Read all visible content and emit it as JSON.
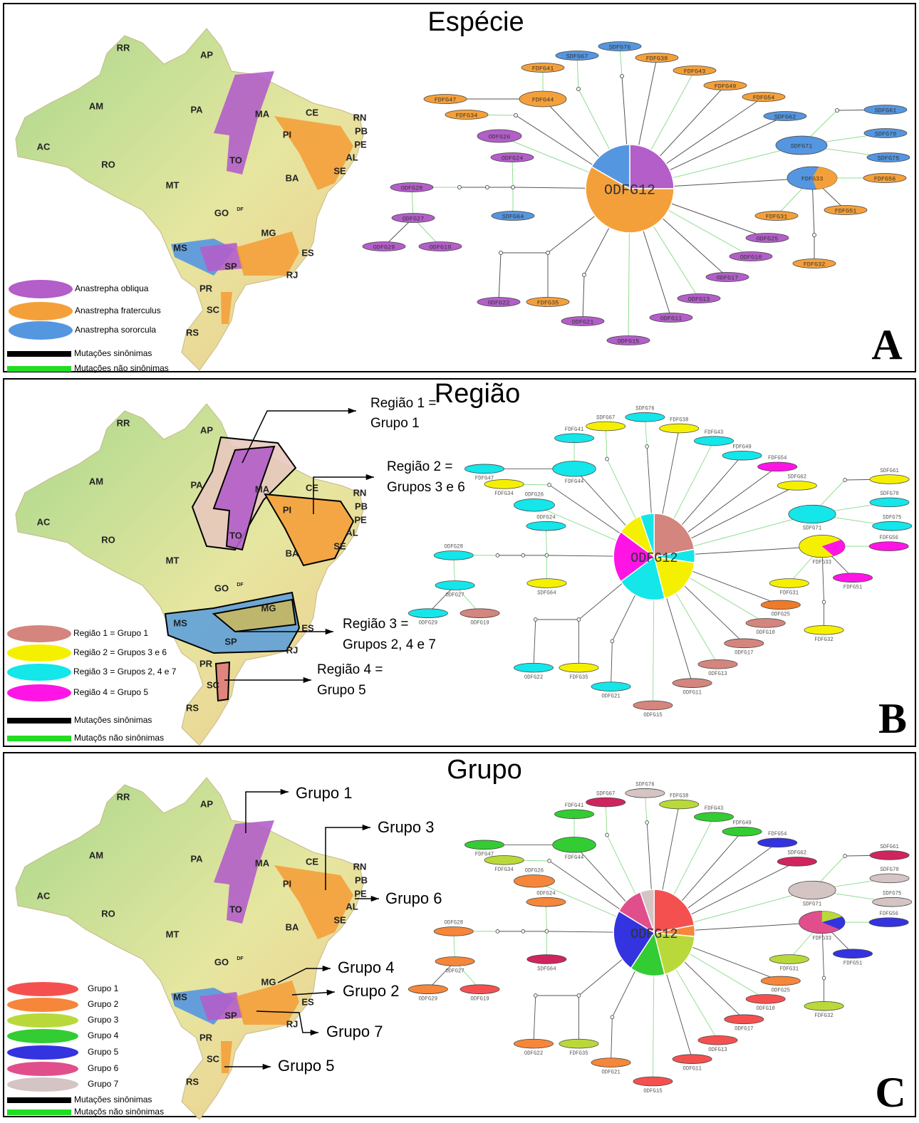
{
  "panels": [
    {
      "title": "Espécie",
      "letter": "A",
      "legend": [
        "Anastrepha obliqua",
        "Anastrepha fraterculus",
        "Anastrepha sororcula"
      ],
      "legend_colors": [
        "#b35ec9",
        "#f4a03a",
        "#5596e0"
      ],
      "mutation_legend": [
        "Mutações sinônimas",
        "Mutações não sinônimas"
      ],
      "annotations": [],
      "node_colors": [
        "#5596e0",
        "#5596e0",
        "#f4a03a",
        "#f4a03a",
        "#f4a03a",
        "#f4a03a",
        "#f4a03a",
        "#f4a03a",
        "#f4a03a",
        "#f4a03a",
        "#5596e0",
        "#b35ec9",
        "#5596e0",
        "#5596e0",
        "#5596e0",
        "#5596e0",
        "#b35ec9",
        "#5596e0",
        "#f4a03a",
        "#b35ec9",
        "#5596e0",
        "#b35ec9",
        "#f4a03a",
        "#f4a03a",
        "#b35ec9",
        "#b35ec9",
        "#b35ec9",
        "#b35ec9",
        "#f4a03a",
        "#b35ec9",
        "#b35ec9",
        "#b35ec9",
        "#f4a03a",
        "#b35ec9",
        "#b35ec9",
        "#b35ec9"
      ]
    },
    {
      "title": "Região",
      "letter": "B",
      "legend": [
        "Região 1 = Grupo 1",
        "Região 2 = Grupos 3 e 6",
        "Região 3 = Grupos 2, 4 e 7",
        "Região 4 = Grupo 5"
      ],
      "legend_colors": [
        "#d4857d",
        "#f5f000",
        "#14e6ea",
        "#ff14e6"
      ],
      "mutation_legend": [
        "Mutações sinônimas",
        "Mutaçõs não sinônimas"
      ],
      "annotations": [
        "Região 1 =",
        "Grupo 1",
        "Região 2 =",
        "Grupos 3 e 6",
        "Região 3 =",
        "Grupos 2, 4 e 7",
        "Região 4 =",
        "Grupo 5"
      ],
      "node_colors": [
        "#14e6ea",
        "#f5f000",
        "#f5f000",
        "#14e6ea",
        "#14e6ea",
        "#14e6ea",
        "#14e6ea",
        "#14e6ea",
        "#ff14e6",
        "#f5f000",
        "#f5f000",
        "#14e6ea",
        "#f5f000",
        "#14e6ea",
        "#14e6ea",
        "#14e6ea",
        "#14e6ea",
        "#f5f000",
        "#ff14e6",
        "#14e6ea",
        "#f5f000",
        "#14e6ea",
        "#ff14e6",
        "#f5f000",
        "#ee7a2a",
        "#14e6ea",
        "#d4857d",
        "#d4857d",
        "#f5f000",
        "#d4857d",
        "#d4857d",
        "#14e6ea",
        "#f5f000",
        "#d4857d",
        "#14e6ea",
        "#d4857d"
      ]
    },
    {
      "title": "Grupo",
      "letter": "C",
      "legend": [
        "Grupo 1",
        "Grupo 2",
        "Grupo 3",
        "Grupo 4",
        "Grupo 5",
        "Grupo 6",
        "Grupo 7"
      ],
      "legend_colors": [
        "#f55050",
        "#f5863a",
        "#b9d93a",
        "#33cc33",
        "#3333e0",
        "#e04f8c",
        "#d4c4c4"
      ],
      "mutation_legend": [
        "Mutações sinônimas",
        "Mutaçõs não sinônimas"
      ],
      "annotations": [
        "Grupo 1",
        "Grupo 3",
        "Grupo 6",
        "Grupo 4",
        "Grupo 2",
        "Grupo 7",
        "Grupo 5"
      ],
      "node_colors": [
        "#d4c4c4",
        "#d0245e",
        "#b9d93a",
        "#33cc33",
        "#33cc33",
        "#33cc33",
        "#33cc33",
        "#33cc33",
        "#3333e0",
        "#b9d93a",
        "#d0245e",
        "#f5863a",
        "#d0245e",
        "#d4c4c4",
        "#d4c4c4",
        "#d4c4c4",
        "#f5863a",
        "#e04f8c",
        "#3333e0",
        "#f5863a",
        "#d0245e",
        "#f5863a",
        "#3333e0",
        "#b9d93a",
        "#f5863a",
        "#f5863a",
        "#f55050",
        "#f55050",
        "#b9d93a",
        "#f55050",
        "#f55050",
        "#f5863a",
        "#b9d93a",
        "#f55050",
        "#f5863a",
        "#f55050"
      ]
    }
  ],
  "map_states": [
    "RR",
    "AP",
    "AM",
    "PA",
    "MA",
    "CE",
    "RN",
    "PB",
    "PE",
    "AL",
    "SE",
    "PI",
    "AC",
    "RO",
    "TO",
    "BA",
    "MT",
    "GO",
    "DF",
    "MG",
    "ES",
    "MS",
    "SP",
    "RJ",
    "PR",
    "SC",
    "RS"
  ],
  "network": {
    "center": "ODFG12",
    "nodes": [
      "SDFG76",
      "SDFG67",
      "FDFG38",
      "FDFG41",
      "FDFG43",
      "FDFG49",
      "FDFG44",
      "FDFG47",
      "FDFG54",
      "FDFG34",
      "SDFG62",
      "ODFG26",
      "SDFG61",
      "SDFG70",
      "SDFG71",
      "SDFG75",
      "ODFG24",
      "FDFG33",
      "FDFG56",
      "ODFG28",
      "SDFG64",
      "ODFG27",
      "FDFG51",
      "FDFG31",
      "ODFG25",
      "ODFG29",
      "ODFG19",
      "ODFG10",
      "FDFG32",
      "ODFG17",
      "ODFG13",
      "ODFG22",
      "FDFG35",
      "ODFG11",
      "ODFG21",
      "ODFG15"
    ]
  }
}
